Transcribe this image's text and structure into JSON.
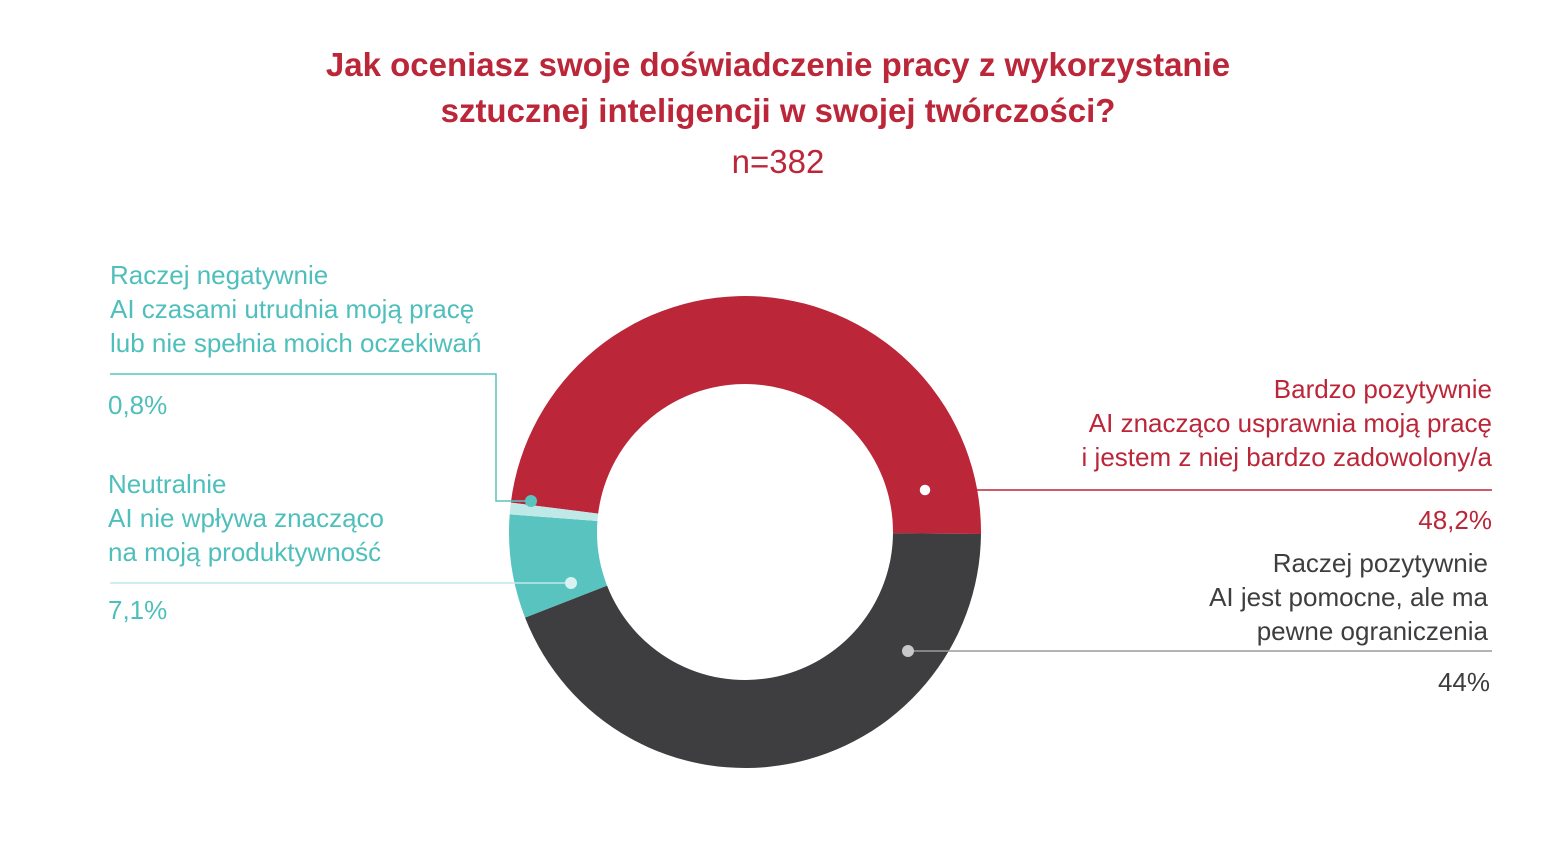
{
  "title": {
    "line1": "Jak oceniasz swoje doświadczenie pracy z wykorzystanie",
    "line2": "sztucznej inteligencji w swojej twórczości?"
  },
  "subtitle": "n=382",
  "colors": {
    "red": "#bb2639",
    "dark": "#3e3e40",
    "teal": "#58c3bf",
    "teal_light": "#bfe9e7",
    "line_gray": "#9a9a9a"
  },
  "chart_data": {
    "type": "pie",
    "variant": "donut",
    "slices": [
      {
        "key": "bardzo_pozytywnie",
        "title": "Bardzo pozytywnie",
        "desc1": "AI znacząco usprawnia moją pracę",
        "desc2": "i jestem z niej bardzo zadowolony/a",
        "value": 48.2,
        "label": "48,2%",
        "color": "#bb2639"
      },
      {
        "key": "raczej_pozytywnie",
        "title": "Raczej pozytywnie",
        "desc1": "AI jest pomocne, ale ma",
        "desc2": "pewne ograniczenia",
        "value": 44,
        "label": "44%",
        "color": "#3e3e40"
      },
      {
        "key": "neutralnie",
        "title": "Neutralnie",
        "desc1": "AI nie wpływa znacząco",
        "desc2": "na moją produktywność",
        "value": 7.1,
        "label": "7,1%",
        "color": "#58c3bf"
      },
      {
        "key": "raczej_negatywnie",
        "title": "Raczej negatywnie",
        "desc1": "AI czasami utrudnia moją pracę",
        "desc2": "lub nie spełnia moich oczekiwań",
        "value": 0.8,
        "label": "0,8%",
        "color": "#bfe9e7"
      }
    ]
  }
}
